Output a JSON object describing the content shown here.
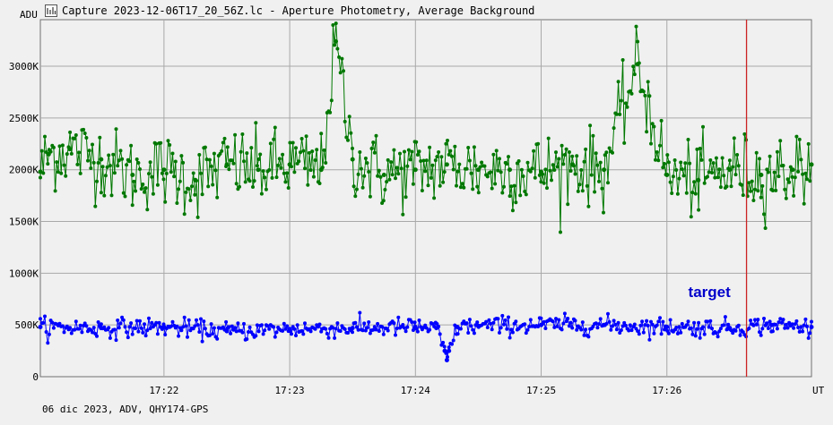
{
  "window": {
    "title": "Capture 2023-12-06T17_20_56Z.lc - Aperture Photometry, Average Background",
    "icon": "light-curve-icon"
  },
  "footer": {
    "text": "06 dic 2023, ADV, QHY174-GPS"
  },
  "colors": {
    "background": "#f0f0f0",
    "grid": "#a8a8a8",
    "cursor": "#cc2222"
  },
  "chart_data": {
    "type": "scatter",
    "ylabel": "ADU",
    "xlabel": "UT",
    "x_unit": "UT",
    "ylim": [
      0,
      3450000
    ],
    "xlim": [
      "17:21:01",
      "17:27:09"
    ],
    "x_ticks": [
      {
        "time": "17:22:00",
        "label": "17:22"
      },
      {
        "time": "17:23:00",
        "label": "17:23"
      },
      {
        "time": "17:24:00",
        "label": "17:24"
      },
      {
        "time": "17:25:00",
        "label": "17:25"
      },
      {
        "time": "17:26:00",
        "label": "17:26"
      }
    ],
    "y_ticks": [
      {
        "value": 0,
        "label": "0"
      },
      {
        "value": 500000,
        "label": "500K"
      },
      {
        "value": 1000000,
        "label": "1000K"
      },
      {
        "value": 1500000,
        "label": "1500K"
      },
      {
        "value": 2000000,
        "label": "2000K"
      },
      {
        "value": 2500000,
        "label": "2500K"
      },
      {
        "value": 3000000,
        "label": "3000K"
      }
    ],
    "grid": true,
    "cursor": {
      "time": "17:26:38"
    },
    "series": [
      {
        "color": "#007800",
        "mean": 2000000,
        "scatter": 180000,
        "values": [
          {
            "time": "17:21:01",
            "value": 1980000
          },
          {
            "time": "17:21:05",
            "value": 2150000
          },
          {
            "time": "17:21:15",
            "value": 2200000
          },
          {
            "time": "17:21:30",
            "value": 2100000
          },
          {
            "time": "17:21:45",
            "value": 1950000
          },
          {
            "time": "17:22:00",
            "value": 2000000
          },
          {
            "time": "17:22:15",
            "value": 1900000
          },
          {
            "time": "17:22:30",
            "value": 2050000
          },
          {
            "time": "17:22:45",
            "value": 2000000
          },
          {
            "time": "17:23:00",
            "value": 2050000
          },
          {
            "time": "17:23:15",
            "value": 2000000
          },
          {
            "time": "17:23:22",
            "value": 3240000
          },
          {
            "time": "17:23:30",
            "value": 2100000
          },
          {
            "time": "17:23:45",
            "value": 1950000
          },
          {
            "time": "17:24:00",
            "value": 2000000
          },
          {
            "time": "17:24:15",
            "value": 2050000
          },
          {
            "time": "17:24:30",
            "value": 2000000
          },
          {
            "time": "17:24:45",
            "value": 2000000
          },
          {
            "time": "17:25:00",
            "value": 1980000
          },
          {
            "time": "17:25:15",
            "value": 2050000
          },
          {
            "time": "17:25:30",
            "value": 2000000
          },
          {
            "time": "17:25:46",
            "value": 3020000
          },
          {
            "time": "17:26:00",
            "value": 1950000
          },
          {
            "time": "17:26:15",
            "value": 1900000
          },
          {
            "time": "17:26:30",
            "value": 2000000
          },
          {
            "time": "17:26:45",
            "value": 1950000
          },
          {
            "time": "17:27:00",
            "value": 2000000
          },
          {
            "time": "17:27:09",
            "value": 2050000
          }
        ]
      },
      {
        "name": "target",
        "color": "#0000ff",
        "mean": 480000,
        "scatter": 45000,
        "values": [
          {
            "time": "17:21:01",
            "value": 480000
          },
          {
            "time": "17:21:30",
            "value": 470000
          },
          {
            "time": "17:22:00",
            "value": 480000
          },
          {
            "time": "17:22:30",
            "value": 440000
          },
          {
            "time": "17:23:00",
            "value": 460000
          },
          {
            "time": "17:23:30",
            "value": 470000
          },
          {
            "time": "17:24:00",
            "value": 480000
          },
          {
            "time": "17:24:10",
            "value": 470000
          },
          {
            "time": "17:24:14",
            "value": 250000
          },
          {
            "time": "17:24:15",
            "value": 160000
          },
          {
            "time": "17:24:16",
            "value": 250000
          },
          {
            "time": "17:24:20",
            "value": 480000
          },
          {
            "time": "17:24:30",
            "value": 490000
          },
          {
            "time": "17:25:00",
            "value": 500000
          },
          {
            "time": "17:25:30",
            "value": 500000
          },
          {
            "time": "17:26:00",
            "value": 480000
          },
          {
            "time": "17:26:30",
            "value": 470000
          },
          {
            "time": "17:26:50",
            "value": 500000
          },
          {
            "time": "17:27:09",
            "value": 480000
          }
        ]
      }
    ]
  }
}
